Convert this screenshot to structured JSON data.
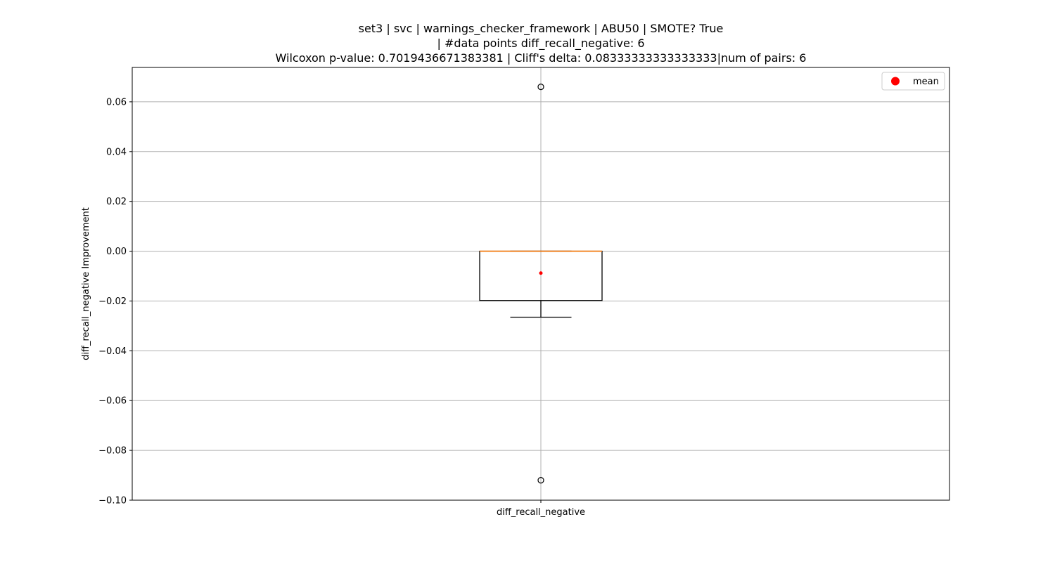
{
  "chart_data": {
    "type": "box",
    "title_lines": [
      "set3 | svc | warnings_checker_framework | ABU50 | SMOTE? True",
      "| #data points diff_recall_negative: 6",
      "Wilcoxon p-value: 0.7019436671383381 | Cliff's delta: 0.08333333333333333|num of pairs: 6"
    ],
    "xlabel": "",
    "ylabel": "diff_recall_negative Improvement",
    "categories": [
      "diff_recall_negative"
    ],
    "ylim": [
      -0.1,
      0.0738
    ],
    "yticks": [
      0.06,
      0.04,
      0.02,
      0.0,
      -0.02,
      -0.04,
      -0.06,
      -0.08,
      -0.1
    ],
    "ytick_labels": [
      "0.06",
      "0.04",
      "0.02",
      "0.00",
      "−0.02",
      "−0.04",
      "−0.06",
      "−0.08",
      "−0.10"
    ],
    "grid": true,
    "legend": {
      "placement": "top-right",
      "entries": [
        {
          "label": "mean",
          "color": "#ff0000",
          "marker": "circle"
        }
      ]
    },
    "boxes": [
      {
        "category": "diff_recall_negative",
        "q1": -0.0198,
        "median": 0.0,
        "q3": 0.0,
        "whisker_low": -0.0265,
        "whisker_high": 0.0,
        "mean": -0.0088,
        "outliers": [
          0.066,
          -0.092
        ]
      }
    ],
    "colors": {
      "box": "#000000",
      "median": "#ff7f0e",
      "mean": "#ff0000",
      "grid": "#b0b0b0"
    }
  }
}
